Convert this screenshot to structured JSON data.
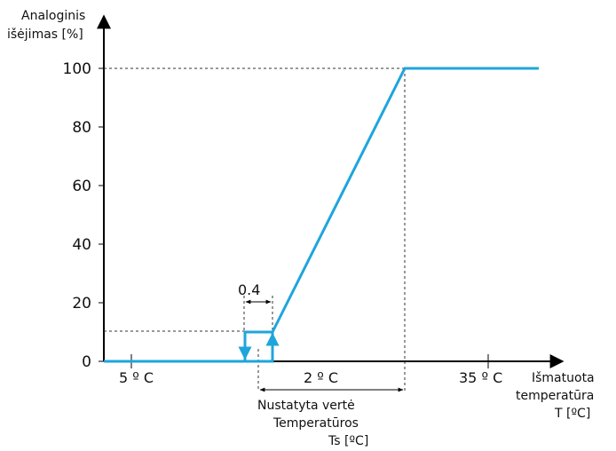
{
  "chart_data": {
    "type": "line",
    "ylabel_lines": [
      "Analoginis",
      "išėjimas [%]"
    ],
    "xlabel_lines": [
      "Išmatuota",
      "temperatūra",
      "T [ºC]"
    ],
    "y_ticks": [
      "0",
      "20",
      "40",
      "60",
      "80",
      "100"
    ],
    "ylim": [
      0,
      100
    ],
    "x_tick_labels": [
      "5 º C",
      "2 º C",
      "35 º C"
    ],
    "setpoint_label_lines": [
      "Nustatyta vertė",
      "Temperatūros",
      "Ts [ºC]"
    ],
    "hysteresis_label": "0.4",
    "series": [
      {
        "values": [
          [
            0,
            0
          ],
          [
            10,
            0
          ],
          [
            10,
            10
          ],
          [
            100,
            100
          ]
        ]
      }
    ],
    "colors": {
      "series": "#1ea5dc",
      "axis": "#000000",
      "guide": "#333333"
    }
  }
}
